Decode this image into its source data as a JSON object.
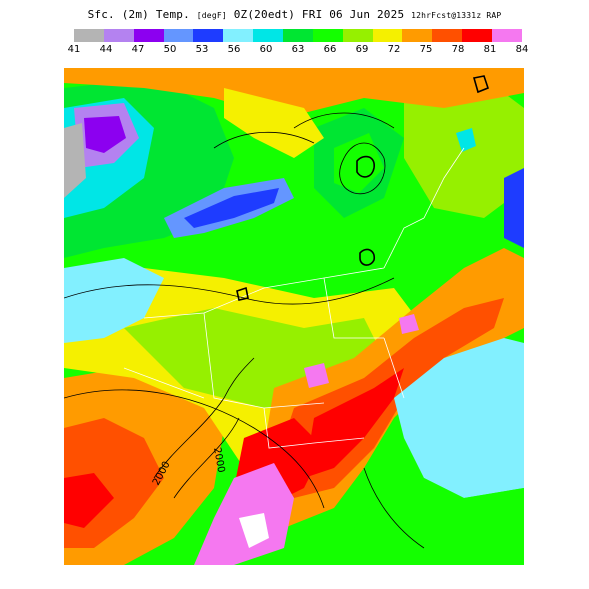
{
  "title": {
    "field": "Sfc. (2m) Temp.",
    "units": "[degF]",
    "valid": "0Z(20edt) FRI 06 Jun 2025",
    "forecast": "12hrFcst@1331z RAP"
  },
  "colorbar": {
    "ticks": [
      "41",
      "44",
      "47",
      "50",
      "53",
      "56",
      "60",
      "63",
      "66",
      "69",
      "72",
      "75",
      "78",
      "81",
      "84"
    ],
    "colors": [
      "#b4b4b4",
      "#b482f0",
      "#8c00f0",
      "#6496ff",
      "#1e3cff",
      "#82f0ff",
      "#00e6e6",
      "#00e632",
      "#14ff00",
      "#96f000",
      "#f5f000",
      "#ff9b00",
      "#ff5000",
      "#ff0000",
      "#f578f0"
    ]
  },
  "map": {
    "contour_labels": [
      "2000",
      "2000"
    ]
  }
}
